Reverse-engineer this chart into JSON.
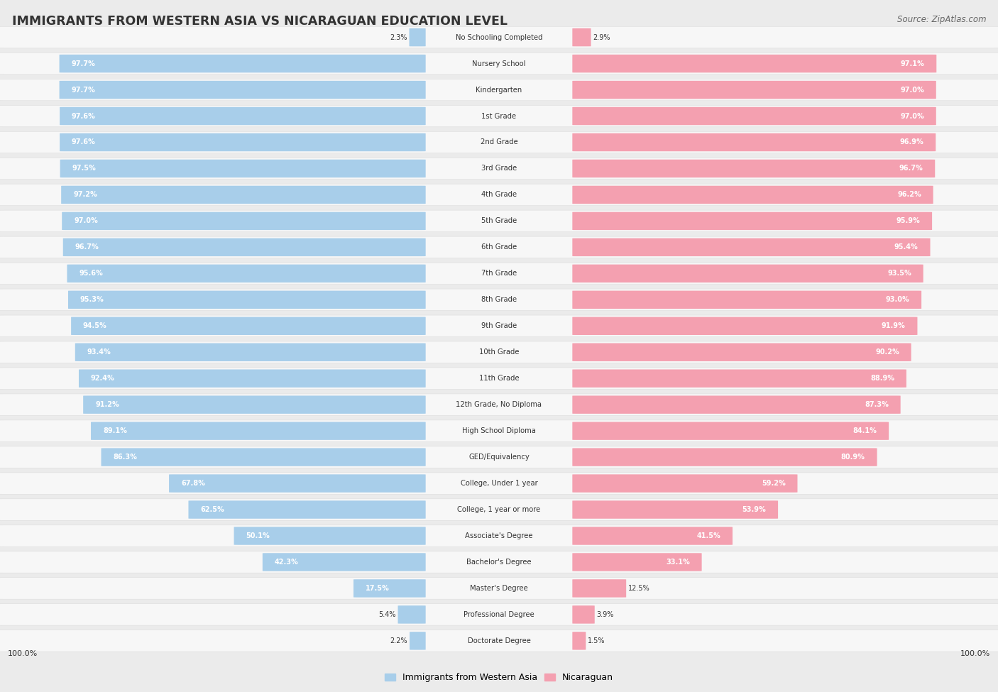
{
  "title": "IMMIGRANTS FROM WESTERN ASIA VS NICARAGUAN EDUCATION LEVEL",
  "source": "Source: ZipAtlas.com",
  "categories": [
    "No Schooling Completed",
    "Nursery School",
    "Kindergarten",
    "1st Grade",
    "2nd Grade",
    "3rd Grade",
    "4th Grade",
    "5th Grade",
    "6th Grade",
    "7th Grade",
    "8th Grade",
    "9th Grade",
    "10th Grade",
    "11th Grade",
    "12th Grade, No Diploma",
    "High School Diploma",
    "GED/Equivalency",
    "College, Under 1 year",
    "College, 1 year or more",
    "Associate's Degree",
    "Bachelor's Degree",
    "Master's Degree",
    "Professional Degree",
    "Doctorate Degree"
  ],
  "western_asia": [
    2.3,
    97.7,
    97.7,
    97.6,
    97.6,
    97.5,
    97.2,
    97.0,
    96.7,
    95.6,
    95.3,
    94.5,
    93.4,
    92.4,
    91.2,
    89.1,
    86.3,
    67.8,
    62.5,
    50.1,
    42.3,
    17.5,
    5.4,
    2.2
  ],
  "nicaraguan": [
    2.9,
    97.1,
    97.0,
    97.0,
    96.9,
    96.7,
    96.2,
    95.9,
    95.4,
    93.5,
    93.0,
    91.9,
    90.2,
    88.9,
    87.3,
    84.1,
    80.9,
    59.2,
    53.9,
    41.5,
    33.1,
    12.5,
    3.9,
    1.5
  ],
  "blue_color": "#A8CEEA",
  "pink_color": "#F4A0B0",
  "bg_color": "#EBEBEB",
  "row_bg_color": "#F7F7F7",
  "text_dark": "#333333",
  "text_gray": "#666666",
  "label_inside_threshold": 15
}
